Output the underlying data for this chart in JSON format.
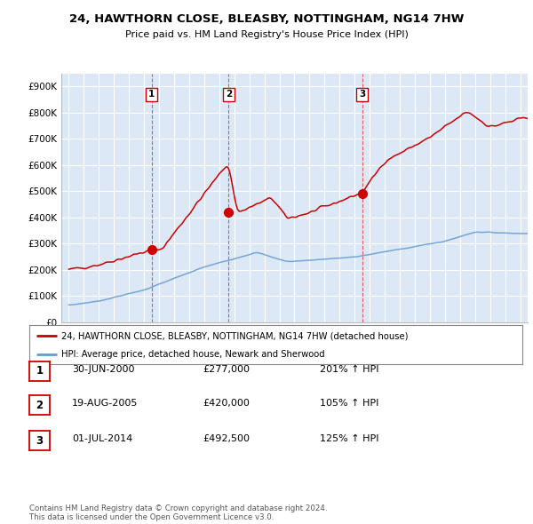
{
  "title": "24, HAWTHORN CLOSE, BLEASBY, NOTTINGHAM, NG14 7HW",
  "subtitle": "Price paid vs. HM Land Registry's House Price Index (HPI)",
  "property_label": "24, HAWTHORN CLOSE, BLEASBY, NOTTINGHAM, NG14 7HW (detached house)",
  "hpi_label": "HPI: Average price, detached house, Newark and Sherwood",
  "transactions": [
    {
      "num": 1,
      "date": "30-JUN-2000",
      "price": "£277,000",
      "hpi": "201% ↑ HPI",
      "year": 2000.5
    },
    {
      "num": 2,
      "date": "19-AUG-2005",
      "price": "£420,000",
      "hpi": "105% ↑ HPI",
      "year": 2005.63
    },
    {
      "num": 3,
      "date": "01-JUL-2014",
      "price": "£492,500",
      "hpi": "125% ↑ HPI",
      "year": 2014.5
    }
  ],
  "transaction_prices": [
    277000,
    420000,
    492500
  ],
  "copyright": "Contains HM Land Registry data © Crown copyright and database right 2024.\nThis data is licensed under the Open Government Licence v3.0.",
  "line_color_property": "#cc0000",
  "line_color_hpi": "#6699cc",
  "vline_color": "#cc0000",
  "background_color": "#ffffff",
  "plot_bg_color": "#dce8f5",
  "grid_color": "#ffffff",
  "ylim": [
    0,
    950000
  ],
  "xlim_start": 1994.5,
  "xlim_end": 2025.5
}
